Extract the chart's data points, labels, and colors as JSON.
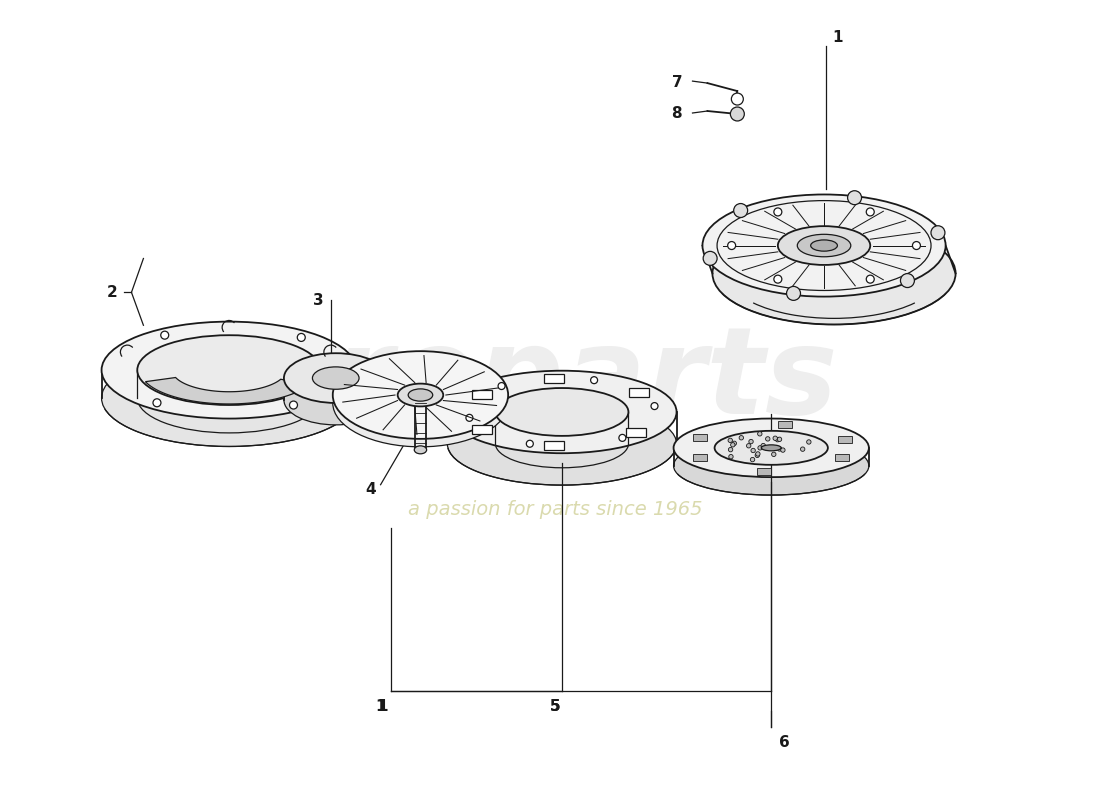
{
  "background_color": "#ffffff",
  "line_color": "#1a1a1a",
  "watermark_color": "#dedede",
  "watermark_text_color": "#d4d4a0",
  "tagline": "a passion for parts since 1965",
  "figsize": [
    11.0,
    8.0
  ],
  "dpi": 100
}
